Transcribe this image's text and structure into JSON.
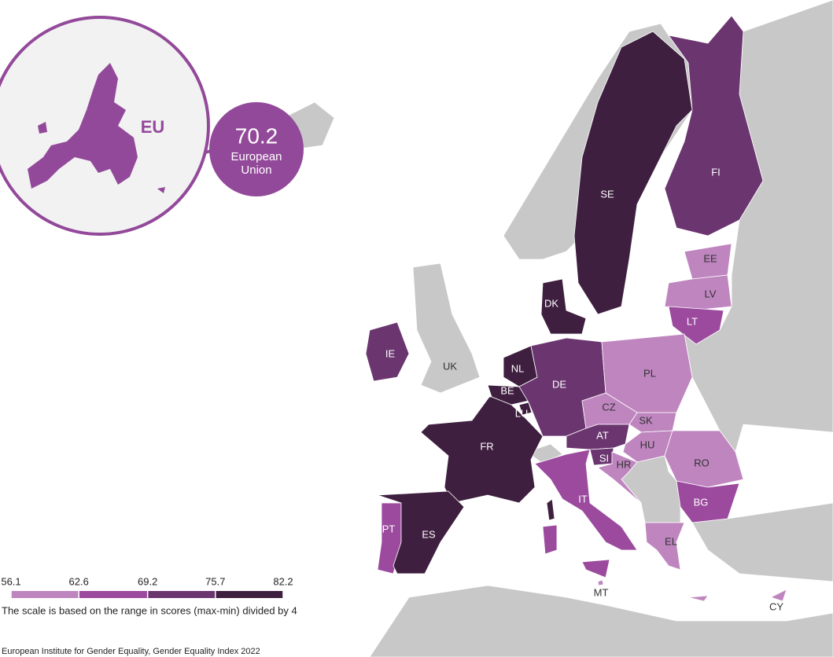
{
  "eu_badge": {
    "label": "EU",
    "value": 70.2,
    "name_line1": "European",
    "name_line2": "Union"
  },
  "countries": [
    {
      "code": "SE",
      "color": "#3f1f3f"
    },
    {
      "code": "FI",
      "color": "#6b3570"
    },
    {
      "code": "EE",
      "color": "#bf85bf"
    },
    {
      "code": "LV",
      "color": "#bf85bf"
    },
    {
      "code": "LT",
      "color": "#9b4a9e"
    },
    {
      "code": "DK",
      "color": "#3f1f3f"
    },
    {
      "code": "IE",
      "color": "#6b3570"
    },
    {
      "code": "UK",
      "color": "#c8c8c8"
    },
    {
      "code": "NL",
      "color": "#3f1f3f"
    },
    {
      "code": "BE",
      "color": "#3f1f3f"
    },
    {
      "code": "LU",
      "color": "#3f1f3f"
    },
    {
      "code": "DE",
      "color": "#6b3570"
    },
    {
      "code": "PL",
      "color": "#bf85bf"
    },
    {
      "code": "CZ",
      "color": "#bf85bf"
    },
    {
      "code": "SK",
      "color": "#bf85bf"
    },
    {
      "code": "AT",
      "color": "#6b3570"
    },
    {
      "code": "HU",
      "color": "#bf85bf"
    },
    {
      "code": "SI",
      "color": "#6b3570"
    },
    {
      "code": "HR",
      "color": "#bf85bf"
    },
    {
      "code": "RO",
      "color": "#bf85bf"
    },
    {
      "code": "BG",
      "color": "#9b4a9e"
    },
    {
      "code": "FR",
      "color": "#3f1f3f"
    },
    {
      "code": "IT",
      "color": "#9b4a9e"
    },
    {
      "code": "PT",
      "color": "#9b4a9e"
    },
    {
      "code": "ES",
      "color": "#3f1f3f"
    },
    {
      "code": "EL",
      "color": "#bf85bf"
    },
    {
      "code": "MT",
      "color": "#bf85bf"
    },
    {
      "code": "CY",
      "color": "#bf85bf"
    }
  ],
  "legend": {
    "ticks": [
      56.1,
      62.6,
      69.2,
      75.7,
      82.2
    ],
    "colors": [
      "#bf85bf",
      "#9b4a9e",
      "#6b3570",
      "#3f1f3f"
    ],
    "note": "The scale is based on the range in scores (max-min) divided by 4"
  },
  "source": "European Institute for Gender Equality, Gender Equality Index 2022"
}
